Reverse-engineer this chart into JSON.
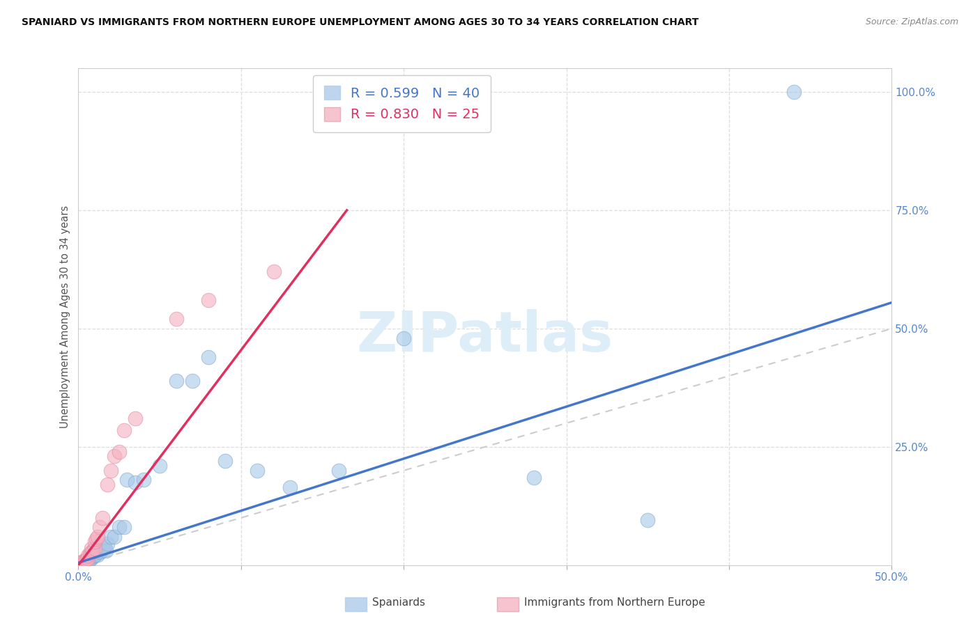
{
  "title": "SPANIARD VS IMMIGRANTS FROM NORTHERN EUROPE UNEMPLOYMENT AMONG AGES 30 TO 34 YEARS CORRELATION CHART",
  "source": "Source: ZipAtlas.com",
  "ylabel": "Unemployment Among Ages 30 to 34 years",
  "xlim": [
    0.0,
    0.5
  ],
  "ylim": [
    0.0,
    1.05
  ],
  "legend_r_blue": "R = 0.599",
  "legend_n_blue": "N = 40",
  "legend_r_pink": "R = 0.830",
  "legend_n_pink": "N = 25",
  "blue_scatter_color": "#a8c8e8",
  "pink_scatter_color": "#f4b0c0",
  "blue_line_color": "#4477cc",
  "pink_line_color": "#e03060",
  "ref_line_color": "#cccccc",
  "watermark_text": "ZIPatlas",
  "watermark_color": "#ddeef8",
  "spaniards_x": [
    0.002,
    0.003,
    0.004,
    0.005,
    0.005,
    0.006,
    0.007,
    0.007,
    0.008,
    0.008,
    0.009,
    0.01,
    0.01,
    0.011,
    0.012,
    0.013,
    0.014,
    0.015,
    0.016,
    0.017,
    0.018,
    0.02,
    0.022,
    0.025,
    0.028,
    0.03,
    0.035,
    0.04,
    0.05,
    0.06,
    0.07,
    0.08,
    0.09,
    0.11,
    0.13,
    0.16,
    0.2,
    0.28,
    0.35,
    0.44
  ],
  "spaniards_y": [
    0.005,
    0.005,
    0.008,
    0.01,
    0.012,
    0.01,
    0.012,
    0.015,
    0.015,
    0.018,
    0.018,
    0.02,
    0.022,
    0.025,
    0.022,
    0.028,
    0.03,
    0.035,
    0.04,
    0.03,
    0.045,
    0.06,
    0.06,
    0.08,
    0.08,
    0.18,
    0.175,
    0.18,
    0.21,
    0.39,
    0.39,
    0.44,
    0.22,
    0.2,
    0.165,
    0.2,
    0.48,
    0.185,
    0.095,
    1.0
  ],
  "immigrants_x": [
    0.002,
    0.003,
    0.004,
    0.005,
    0.006,
    0.006,
    0.007,
    0.008,
    0.008,
    0.009,
    0.01,
    0.01,
    0.011,
    0.012,
    0.013,
    0.015,
    0.018,
    0.02,
    0.022,
    0.025,
    0.028,
    0.035,
    0.06,
    0.08,
    0.12
  ],
  "immigrants_y": [
    0.005,
    0.008,
    0.01,
    0.012,
    0.015,
    0.02,
    0.025,
    0.028,
    0.035,
    0.03,
    0.035,
    0.05,
    0.055,
    0.06,
    0.08,
    0.1,
    0.17,
    0.2,
    0.23,
    0.24,
    0.285,
    0.31,
    0.52,
    0.56,
    0.62
  ],
  "blue_line_x": [
    0.0,
    0.5
  ],
  "blue_line_y": [
    0.005,
    0.555
  ],
  "pink_line_x": [
    0.0,
    0.165
  ],
  "pink_line_y": [
    0.0,
    0.75
  ]
}
